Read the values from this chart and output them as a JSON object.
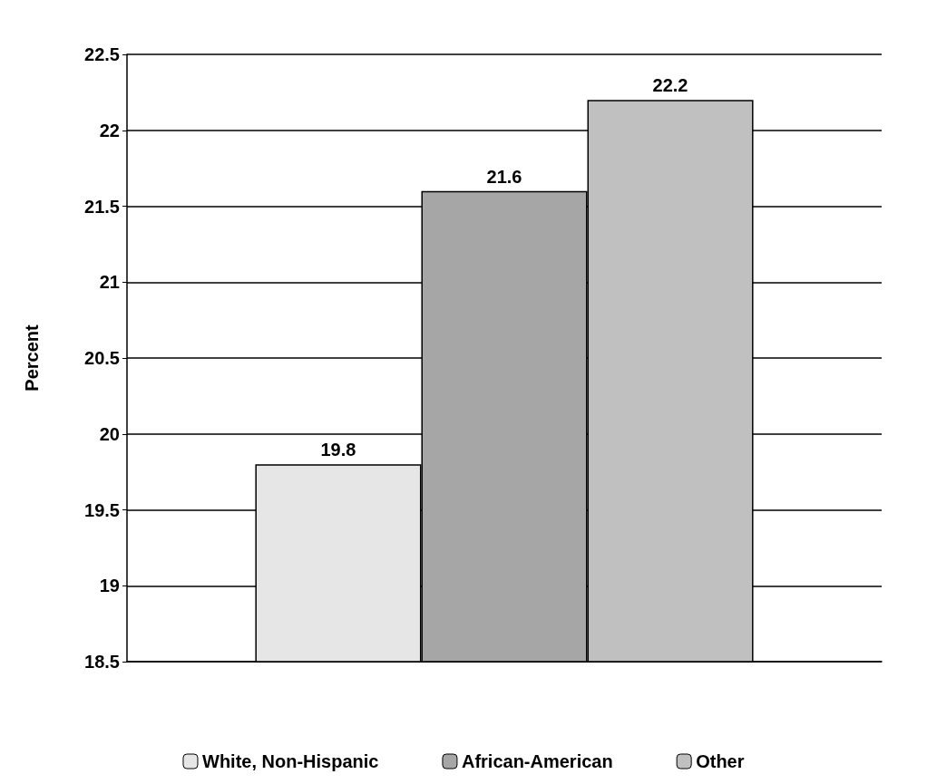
{
  "chart_data": {
    "type": "bar",
    "ylabel": "Percent",
    "categories": [
      null
    ],
    "series": [
      {
        "name": "White, Non-Hispanic",
        "color": "#e6e6e6",
        "values": [
          19.8
        ]
      },
      {
        "name": "African-American",
        "color": "#a6a6a6",
        "values": [
          21.6
        ]
      },
      {
        "name": "Other",
        "color": "#c0c0c0",
        "values": [
          22.2
        ]
      }
    ],
    "ylim": [
      18.5,
      22.5
    ],
    "yticks": [
      18.5,
      19,
      19.5,
      20,
      20.5,
      21,
      21.5,
      22,
      22.5
    ],
    "grid": "y",
    "legend": "bottom",
    "data_labels": true,
    "tick_labels": "y"
  }
}
